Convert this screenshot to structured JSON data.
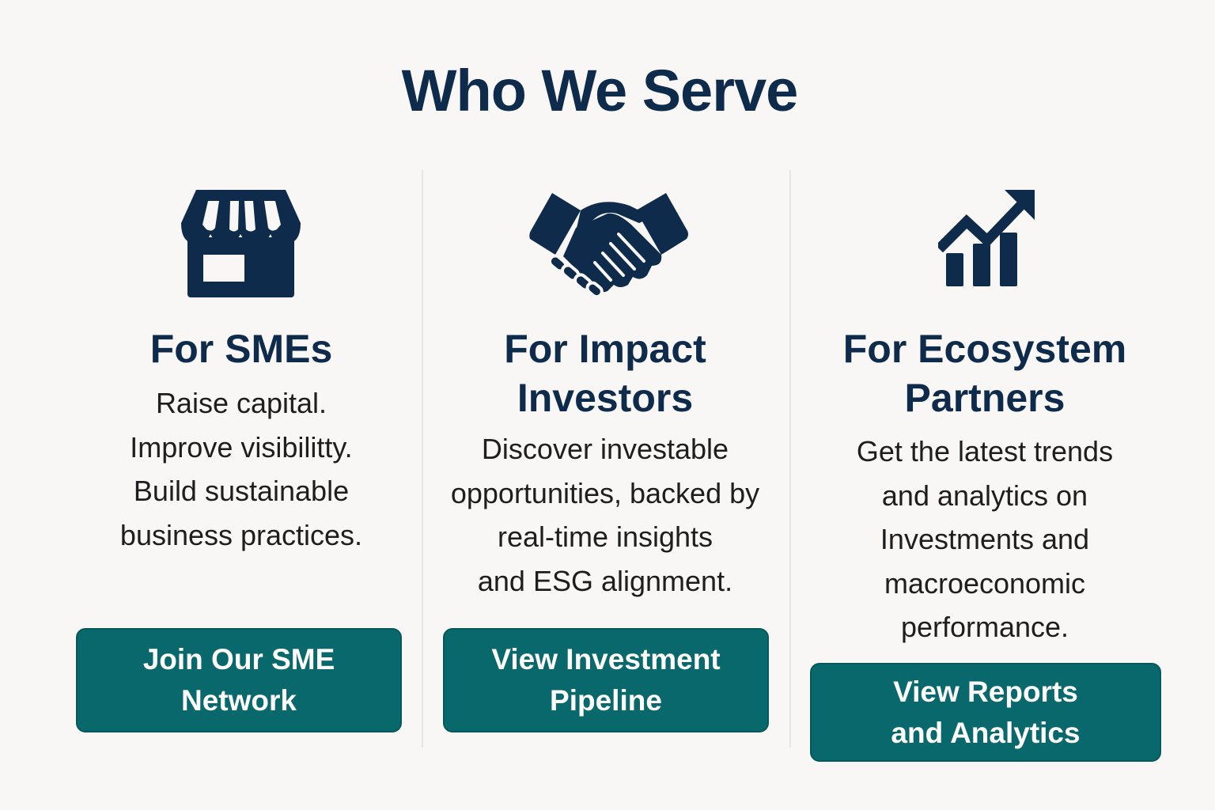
{
  "page": {
    "title": "Who We Serve"
  },
  "colors": {
    "heading": "#0f2b4c",
    "body_text": "#1e1e1e",
    "button": "#08686b",
    "button_text": "#ffffff",
    "background": "#f8f7f5",
    "divider": "#e6e5e2"
  },
  "columns": [
    {
      "icon": "storefront-icon",
      "title_lines": [
        "For SMEs"
      ],
      "description_lines": [
        "Raise capital.",
        "Improve visibilitty.",
        "Build sustainable",
        "business practices."
      ],
      "button_lines": [
        "Join Our SME",
        "Network"
      ]
    },
    {
      "icon": "handshake-icon",
      "title_lines": [
        "For Impact",
        "Investors"
      ],
      "description_lines": [
        "Discover investable",
        "opportunities, backed by",
        "real-time insights",
        "and ESG alignment."
      ],
      "button_lines": [
        "View Investment",
        "Pipeline"
      ]
    },
    {
      "icon": "growth-chart-icon",
      "title_lines": [
        "For Ecosystem",
        "Partners"
      ],
      "description_lines": [
        "Get the latest trends",
        "and analytics on",
        "Investments and",
        "macroeconomic",
        "performance."
      ],
      "button_lines": [
        "View Reports",
        "and Analytics"
      ]
    }
  ]
}
